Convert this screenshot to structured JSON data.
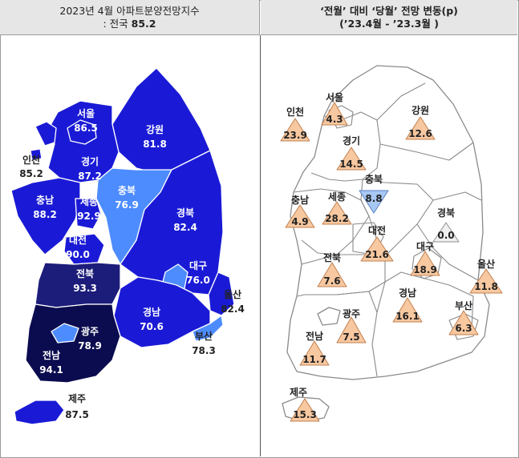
{
  "header_left": {
    "line1": "2023년 4월 아파트분양전망지수",
    "line2_prefix": ": 전국 ",
    "line2_value": "85.2"
  },
  "header_right": {
    "line1": "‘전월’ 대비 ‘당월’ 전망 변동(p)",
    "line2": "(’23.4월 - ’23.3월 )"
  },
  "colors": {
    "level1": "#1a1ad6",
    "level2": "#4d8cff",
    "level3": "#1c1c7a",
    "level4": "#0b0b4f",
    "triangle_up": "#f8c8a0",
    "triangle_down": "#a8c8f4",
    "triangle_zero": "#f0f0f0"
  },
  "left_regions": [
    {
      "name": "서울",
      "value": "86.5"
    },
    {
      "name": "인천",
      "value": "85.2"
    },
    {
      "name": "경기",
      "value": "87.2"
    },
    {
      "name": "강원",
      "value": "81.8"
    },
    {
      "name": "충북",
      "value": "76.9"
    },
    {
      "name": "충남",
      "value": "88.2"
    },
    {
      "name": "세종",
      "value": "92.9"
    },
    {
      "name": "대전",
      "value": "90.0"
    },
    {
      "name": "경북",
      "value": "82.4"
    },
    {
      "name": "대구",
      "value": "76.0"
    },
    {
      "name": "전북",
      "value": "93.3"
    },
    {
      "name": "울산",
      "value": "82.4"
    },
    {
      "name": "경남",
      "value": "70.6"
    },
    {
      "name": "광주",
      "value": "78.9"
    },
    {
      "name": "부산",
      "value": "78.3"
    },
    {
      "name": "전남",
      "value": "94.1"
    },
    {
      "name": "제주",
      "value": "87.5"
    }
  ],
  "right_regions": [
    {
      "name": "서울",
      "value": "4.3",
      "dir": "up"
    },
    {
      "name": "인천",
      "value": "23.9",
      "dir": "up"
    },
    {
      "name": "강원",
      "value": "12.6",
      "dir": "up"
    },
    {
      "name": "경기",
      "value": "14.5",
      "dir": "up"
    },
    {
      "name": "충북",
      "value": "8.8",
      "dir": "down"
    },
    {
      "name": "충남",
      "value": "4.9",
      "dir": "up"
    },
    {
      "name": "세종",
      "value": "28.2",
      "dir": "up"
    },
    {
      "name": "경북",
      "value": "0.0",
      "dir": "zero"
    },
    {
      "name": "대전",
      "value": "21.6",
      "dir": "up"
    },
    {
      "name": "대구",
      "value": "18.9",
      "dir": "up"
    },
    {
      "name": "전북",
      "value": "7.6",
      "dir": "up"
    },
    {
      "name": "울산",
      "value": "11.8",
      "dir": "up"
    },
    {
      "name": "경남",
      "value": "16.1",
      "dir": "up"
    },
    {
      "name": "광주",
      "value": "7.5",
      "dir": "up"
    },
    {
      "name": "부산",
      "value": "6.3",
      "dir": "up"
    },
    {
      "name": "전남",
      "value": "11.7",
      "dir": "up"
    },
    {
      "name": "제주",
      "value": "15.3",
      "dir": "up"
    }
  ]
}
